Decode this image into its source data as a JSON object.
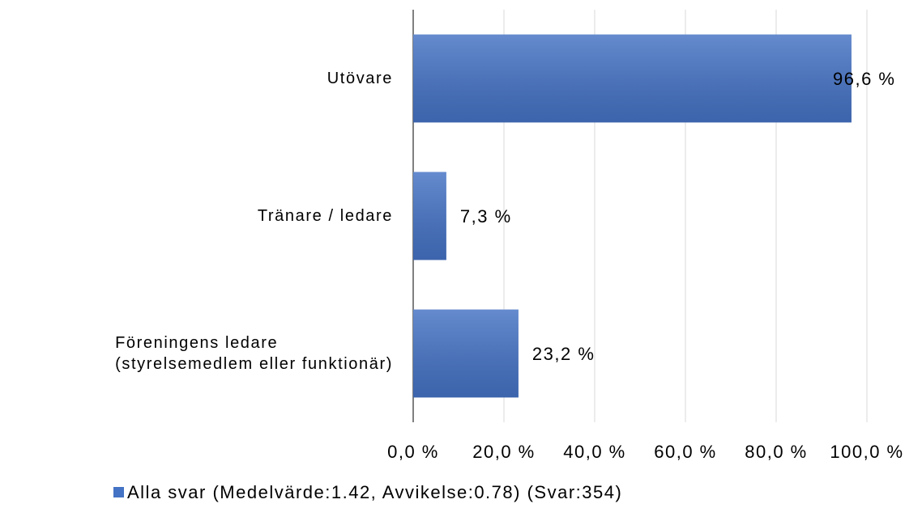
{
  "chart_data": {
    "type": "bar",
    "orientation": "horizontal",
    "categories": [
      "Utövare",
      "Tränare / ledare",
      "Föreningens ledare\n(styrelsemedlem eller funktionär)"
    ],
    "series": [
      {
        "name": "Alla svar (Medelvärde:1.42, Avvikelse:0.78) (Svar:354)",
        "color": "#4472c4",
        "values": [
          96.6,
          7.3,
          23.2
        ],
        "value_labels": [
          "96,6 %",
          "7,3 %",
          "23,2 %"
        ]
      }
    ],
    "xlim": [
      0,
      100
    ],
    "xticks": [
      {
        "value": 0,
        "label": "0,0 %"
      },
      {
        "value": 20,
        "label": "20,0 %"
      },
      {
        "value": 40,
        "label": "40,0 %"
      },
      {
        "value": 60,
        "label": "60,0 %"
      },
      {
        "value": 80,
        "label": "80,0 %"
      },
      {
        "value": 100,
        "label": "100,0 %"
      }
    ],
    "grid": true,
    "legend": "bottom"
  }
}
